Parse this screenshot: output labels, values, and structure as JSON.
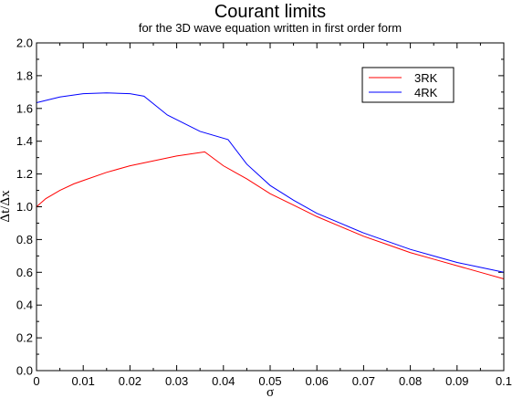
{
  "chart_data": {
    "type": "line",
    "title": "Courant limits",
    "subtitle": "for the 3D wave equation written in first order form",
    "xlabel": "σ",
    "ylabel": "Δt/Δx",
    "xlim": [
      0,
      0.1
    ],
    "ylim": [
      0,
      2.0
    ],
    "x_ticks": [
      "0",
      "0.01",
      "0.02",
      "0.03",
      "0.04",
      "0.05",
      "0.06",
      "0.07",
      "0.08",
      "0.09",
      "0.1"
    ],
    "y_ticks": [
      "0.0",
      "0.2",
      "0.4",
      "0.6",
      "0.8",
      "1.0",
      "1.2",
      "1.4",
      "1.6",
      "1.8",
      "2.0"
    ],
    "legend_position": "top-right",
    "grid": false,
    "series": [
      {
        "name": "3RK",
        "color": "#ff0000",
        "x": [
          0,
          0.002,
          0.005,
          0.008,
          0.01,
          0.015,
          0.02,
          0.025,
          0.03,
          0.036,
          0.04,
          0.045,
          0.05,
          0.055,
          0.06,
          0.065,
          0.07,
          0.075,
          0.08,
          0.085,
          0.09,
          0.095,
          0.1
        ],
        "y": [
          1.0,
          1.05,
          1.1,
          1.14,
          1.16,
          1.21,
          1.25,
          1.28,
          1.31,
          1.335,
          1.25,
          1.17,
          1.08,
          1.01,
          0.94,
          0.88,
          0.82,
          0.77,
          0.72,
          0.68,
          0.64,
          0.6,
          0.56
        ]
      },
      {
        "name": "4RK",
        "color": "#0000ff",
        "x": [
          0,
          0.005,
          0.01,
          0.015,
          0.02,
          0.023,
          0.028,
          0.035,
          0.041,
          0.045,
          0.05,
          0.055,
          0.06,
          0.065,
          0.07,
          0.075,
          0.08,
          0.085,
          0.09,
          0.095,
          0.1
        ],
        "y": [
          1.635,
          1.67,
          1.69,
          1.695,
          1.69,
          1.675,
          1.56,
          1.46,
          1.41,
          1.26,
          1.13,
          1.04,
          0.96,
          0.9,
          0.84,
          0.79,
          0.74,
          0.7,
          0.66,
          0.63,
          0.6
        ]
      }
    ]
  }
}
